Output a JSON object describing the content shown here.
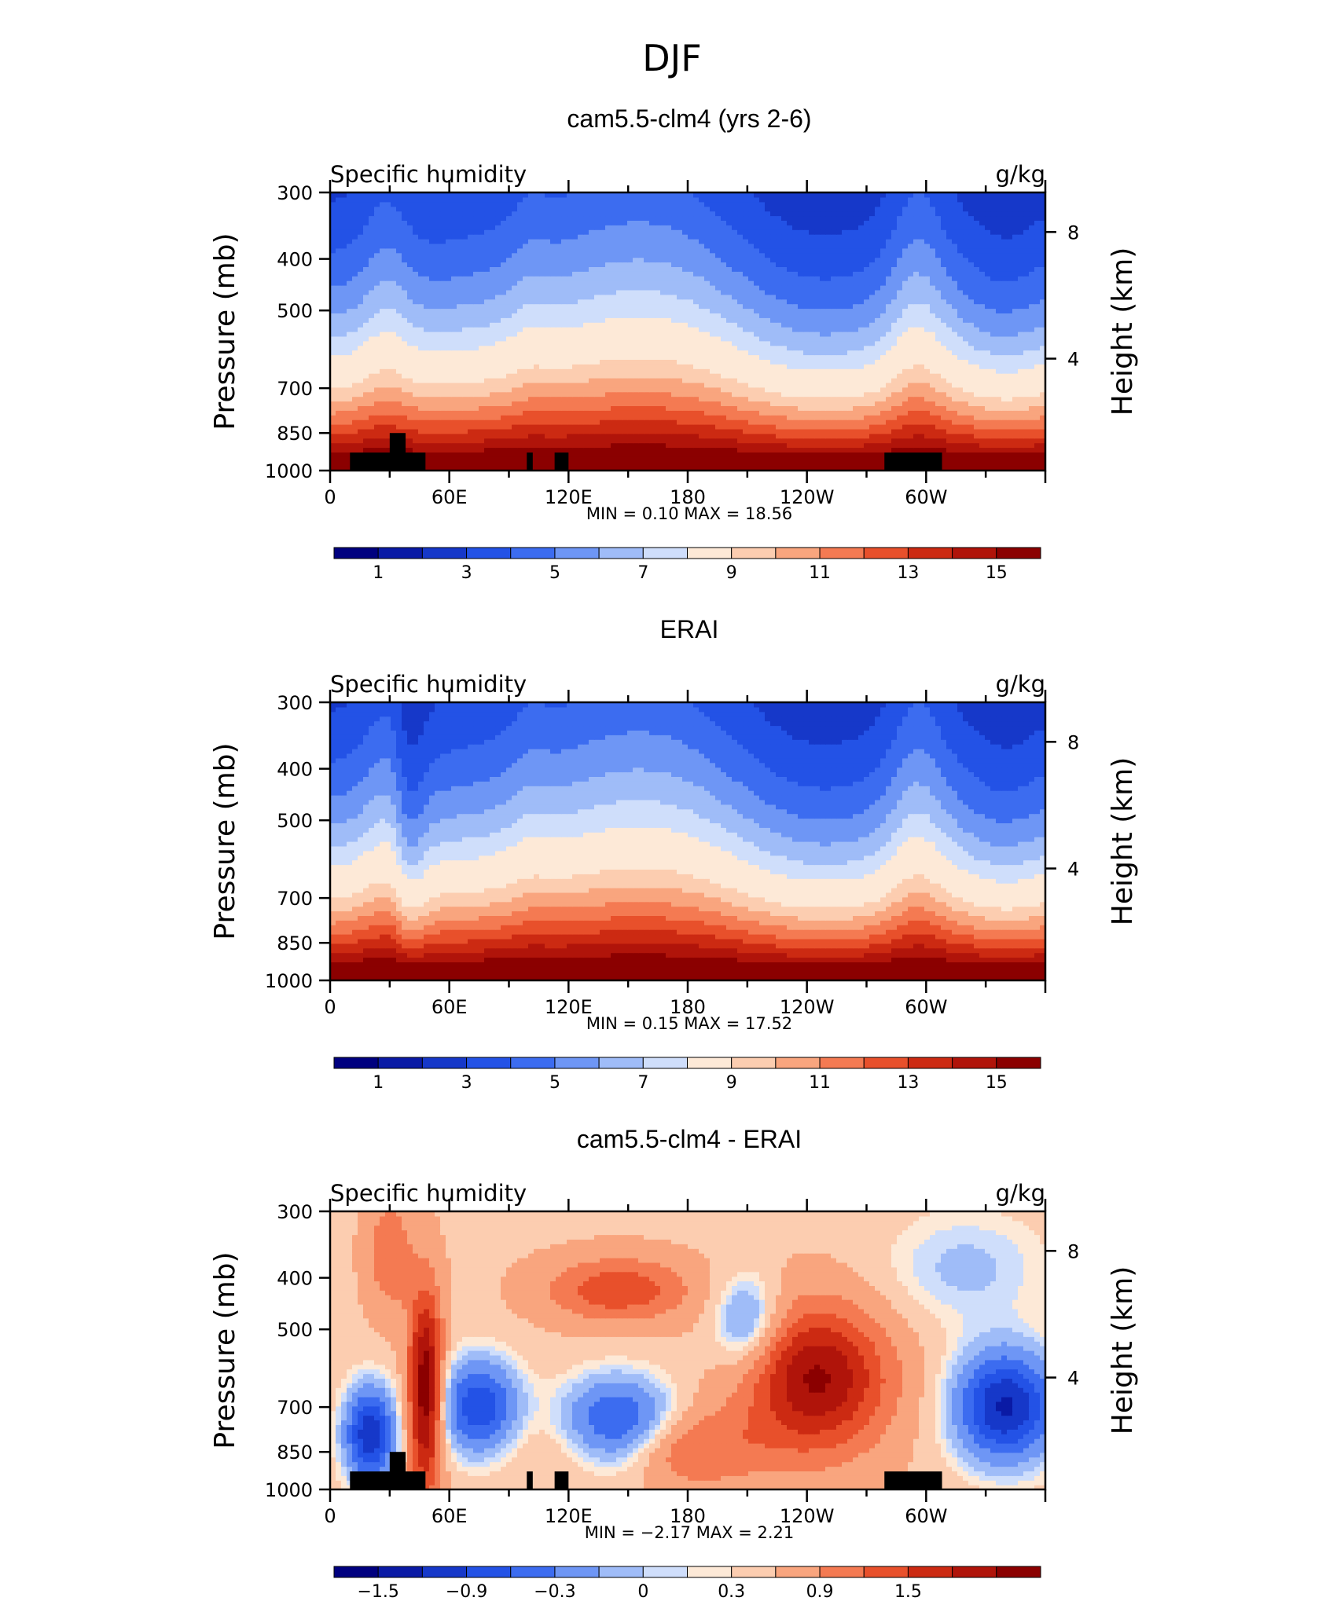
{
  "figure": {
    "main_title": "DJF",
    "tick_colour": "#000000",
    "land_mask_colour": "#000000"
  },
  "palette": {
    "colors": [
      "#00007f",
      "#0a1aa5",
      "#1638c9",
      "#2352e6",
      "#3c6cf0",
      "#6e96f5",
      "#9fbcf8",
      "#cfdefb",
      "#fde9d7",
      "#fccdb0",
      "#f9a57e",
      "#f47a52",
      "#e8502b",
      "#cc2a12",
      "#b0140a",
      "#8b0000"
    ]
  },
  "chart_data": [
    {
      "type": "heatmap",
      "title": "cam5.5-clm4 (yrs 2-6)",
      "left_label": "Specific humidity",
      "right_label": "g/kg",
      "ylabel": "Pressure (mb)",
      "ylabel_right": "Height (km)",
      "ylim": [
        1000,
        300
      ],
      "y_ticks": [
        "300",
        "400",
        "500",
        "700",
        "850",
        "1000"
      ],
      "y_ticks_right": [
        "8",
        "4"
      ],
      "x_ticks": [
        "0",
        "60E",
        "120E",
        "180",
        "120W",
        "60W"
      ],
      "stats_text": "MIN =    0.10   MAX =   18.56",
      "min": 0.1,
      "max": 18.56,
      "colorbar_levels": [
        0,
        1,
        2,
        3,
        4,
        5,
        6,
        7,
        8,
        9,
        10,
        11,
        12,
        13,
        14,
        15
      ],
      "colorbar_labels": [
        "1",
        "3",
        "5",
        "7",
        "9",
        "11",
        "13",
        "15"
      ],
      "field": "model"
    },
    {
      "type": "heatmap",
      "title": "ERAI",
      "left_label": "Specific humidity",
      "right_label": "g/kg",
      "ylabel": "Pressure (mb)",
      "ylabel_right": "Height (km)",
      "ylim": [
        1000,
        300
      ],
      "y_ticks": [
        "300",
        "400",
        "500",
        "700",
        "850",
        "1000"
      ],
      "y_ticks_right": [
        "8",
        "4"
      ],
      "x_ticks": [
        "0",
        "60E",
        "120E",
        "180",
        "120W",
        "60W"
      ],
      "stats_text": "MIN =    0.15   MAX =   17.52",
      "min": 0.15,
      "max": 17.52,
      "colorbar_levels": [
        0,
        1,
        2,
        3,
        4,
        5,
        6,
        7,
        8,
        9,
        10,
        11,
        12,
        13,
        14,
        15
      ],
      "colorbar_labels": [
        "1",
        "3",
        "5",
        "7",
        "9",
        "11",
        "13",
        "15"
      ],
      "field": "obs"
    },
    {
      "type": "heatmap",
      "title": "cam5.5-clm4 - ERAI",
      "left_label": "Specific humidity",
      "right_label": "g/kg",
      "ylabel": "Pressure (mb)",
      "ylabel_right": "Height (km)",
      "ylim": [
        1000,
        300
      ],
      "y_ticks": [
        "300",
        "400",
        "500",
        "700",
        "850",
        "1000"
      ],
      "y_ticks_right": [
        "8",
        "4"
      ],
      "x_ticks": [
        "0",
        "60E",
        "120E",
        "180",
        "120W",
        "60W"
      ],
      "stats_text": "MIN =   −2.17   MAX =     2.21",
      "min": -2.17,
      "max": 2.21,
      "colorbar_levels": [
        -1.8,
        -1.5,
        -1.2,
        -0.9,
        -0.6,
        -0.3,
        -0.1,
        0,
        0.1,
        0.3,
        0.6,
        0.9,
        1.2,
        1.5,
        1.8
      ],
      "colorbar_labels": [
        "−1.5",
        "−0.9",
        "−0.3",
        "0",
        "0.3",
        "0.9",
        "1.5"
      ],
      "field": "diff"
    }
  ]
}
